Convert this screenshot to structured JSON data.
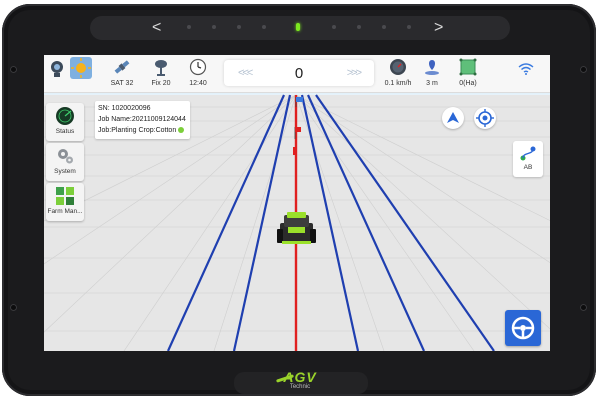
{
  "brand": {
    "name": "AGV",
    "subtitle": "Technic"
  },
  "colors": {
    "accent": "#2a67d6",
    "guide_line": "#e02020",
    "parallel_lines": "#1f3fb0",
    "brand": "#9ad32a"
  },
  "topbar": {
    "satellites": {
      "label": "SAT 32",
      "icon": "satellite-icon"
    },
    "fix": {
      "label": "Fix 20",
      "icon": "antenna-icon"
    },
    "time": {
      "label": "12:40",
      "icon": "clock-icon"
    },
    "counter": {
      "value": "0",
      "left_arrows": "<<<",
      "right_arrows": ">>>"
    },
    "speed": {
      "label": "0.1 km/h",
      "icon": "speedometer-icon"
    },
    "distance": {
      "label": "3 m",
      "icon": "pin-icon"
    },
    "area": {
      "label": "0(Ha)",
      "icon": "field-area-icon"
    },
    "wifi_icon": "wifi-icon"
  },
  "sidebar": {
    "items": [
      {
        "label": "Status",
        "icon": "radar-icon"
      },
      {
        "label": "System",
        "icon": "gears-icon"
      },
      {
        "label": "Farm Man...",
        "icon": "field-icon"
      }
    ]
  },
  "info_panel": {
    "sn": "SN: 1020020096",
    "job_name": "Job Name:20211009124044",
    "job_details": "Job:Planting  Crop:Cotton"
  },
  "ab_button": {
    "label": "AB"
  },
  "navigation": {
    "left_arrow": "<",
    "right_arrow": ">"
  }
}
